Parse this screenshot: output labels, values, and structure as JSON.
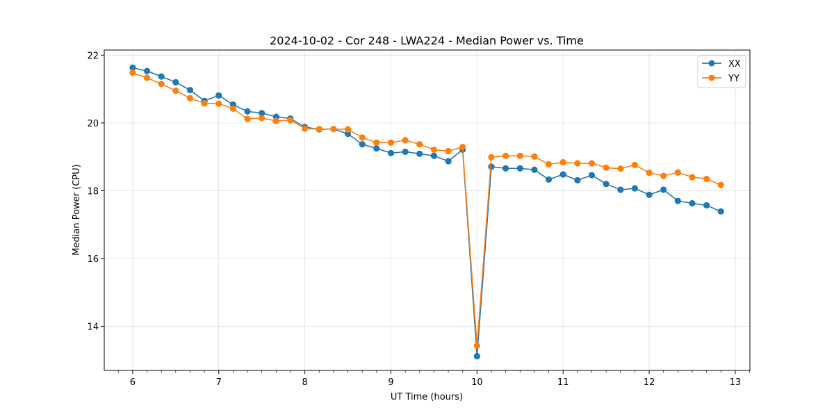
{
  "chart_data": {
    "type": "line",
    "title": "2024-10-02 - Cor 248 - LWA224 - Median Power vs. Time",
    "xlabel": "UT Time (hours)",
    "ylabel": "Median Power (CPU)",
    "xlim": [
      5.67,
      13.17
    ],
    "ylim": [
      12.7,
      22.15
    ],
    "xticks": [
      6,
      7,
      8,
      9,
      10,
      11,
      12,
      13
    ],
    "xtick_labels": [
      "6",
      "7",
      "8",
      "9",
      "10",
      "11",
      "12",
      "13"
    ],
    "yticks": [
      14,
      16,
      18,
      20,
      22
    ],
    "ytick_labels": [
      "14",
      "16",
      "18",
      "20",
      "22"
    ],
    "grid": true,
    "legend_position": "top-right",
    "x": [
      6.0,
      6.167,
      6.333,
      6.5,
      6.667,
      6.833,
      7.0,
      7.167,
      7.333,
      7.5,
      7.667,
      7.833,
      8.0,
      8.167,
      8.333,
      8.5,
      8.667,
      8.833,
      9.0,
      9.167,
      9.333,
      9.5,
      9.667,
      9.833,
      10.0,
      10.167,
      10.333,
      10.5,
      10.667,
      10.833,
      11.0,
      11.167,
      11.333,
      11.5,
      11.667,
      11.833,
      12.0,
      12.167,
      12.333,
      12.5,
      12.667,
      12.833
    ],
    "series": [
      {
        "name": "XX",
        "color": "#1f77b4",
        "values": [
          21.63,
          21.53,
          21.37,
          21.2,
          20.97,
          20.65,
          20.81,
          20.54,
          20.34,
          20.29,
          20.18,
          20.13,
          19.88,
          19.81,
          19.82,
          19.68,
          19.37,
          19.25,
          19.11,
          19.15,
          19.09,
          19.03,
          18.87,
          19.21,
          13.12,
          18.71,
          18.66,
          18.66,
          18.62,
          18.33,
          18.48,
          18.31,
          18.46,
          18.2,
          18.03,
          18.07,
          17.88,
          18.03,
          17.7,
          17.63,
          17.57,
          17.39
        ]
      },
      {
        "name": "YY",
        "color": "#ff7f0e",
        "values": [
          21.48,
          21.33,
          21.15,
          20.95,
          20.73,
          20.58,
          20.57,
          20.42,
          20.12,
          20.14,
          20.06,
          20.08,
          19.83,
          19.82,
          19.82,
          19.81,
          19.57,
          19.42,
          19.42,
          19.49,
          19.37,
          19.21,
          19.17,
          19.29,
          13.43,
          18.99,
          19.03,
          19.03,
          19.01,
          18.78,
          18.84,
          18.81,
          18.81,
          18.68,
          18.65,
          18.76,
          18.53,
          18.44,
          18.54,
          18.4,
          18.35,
          18.17
        ]
      }
    ]
  }
}
